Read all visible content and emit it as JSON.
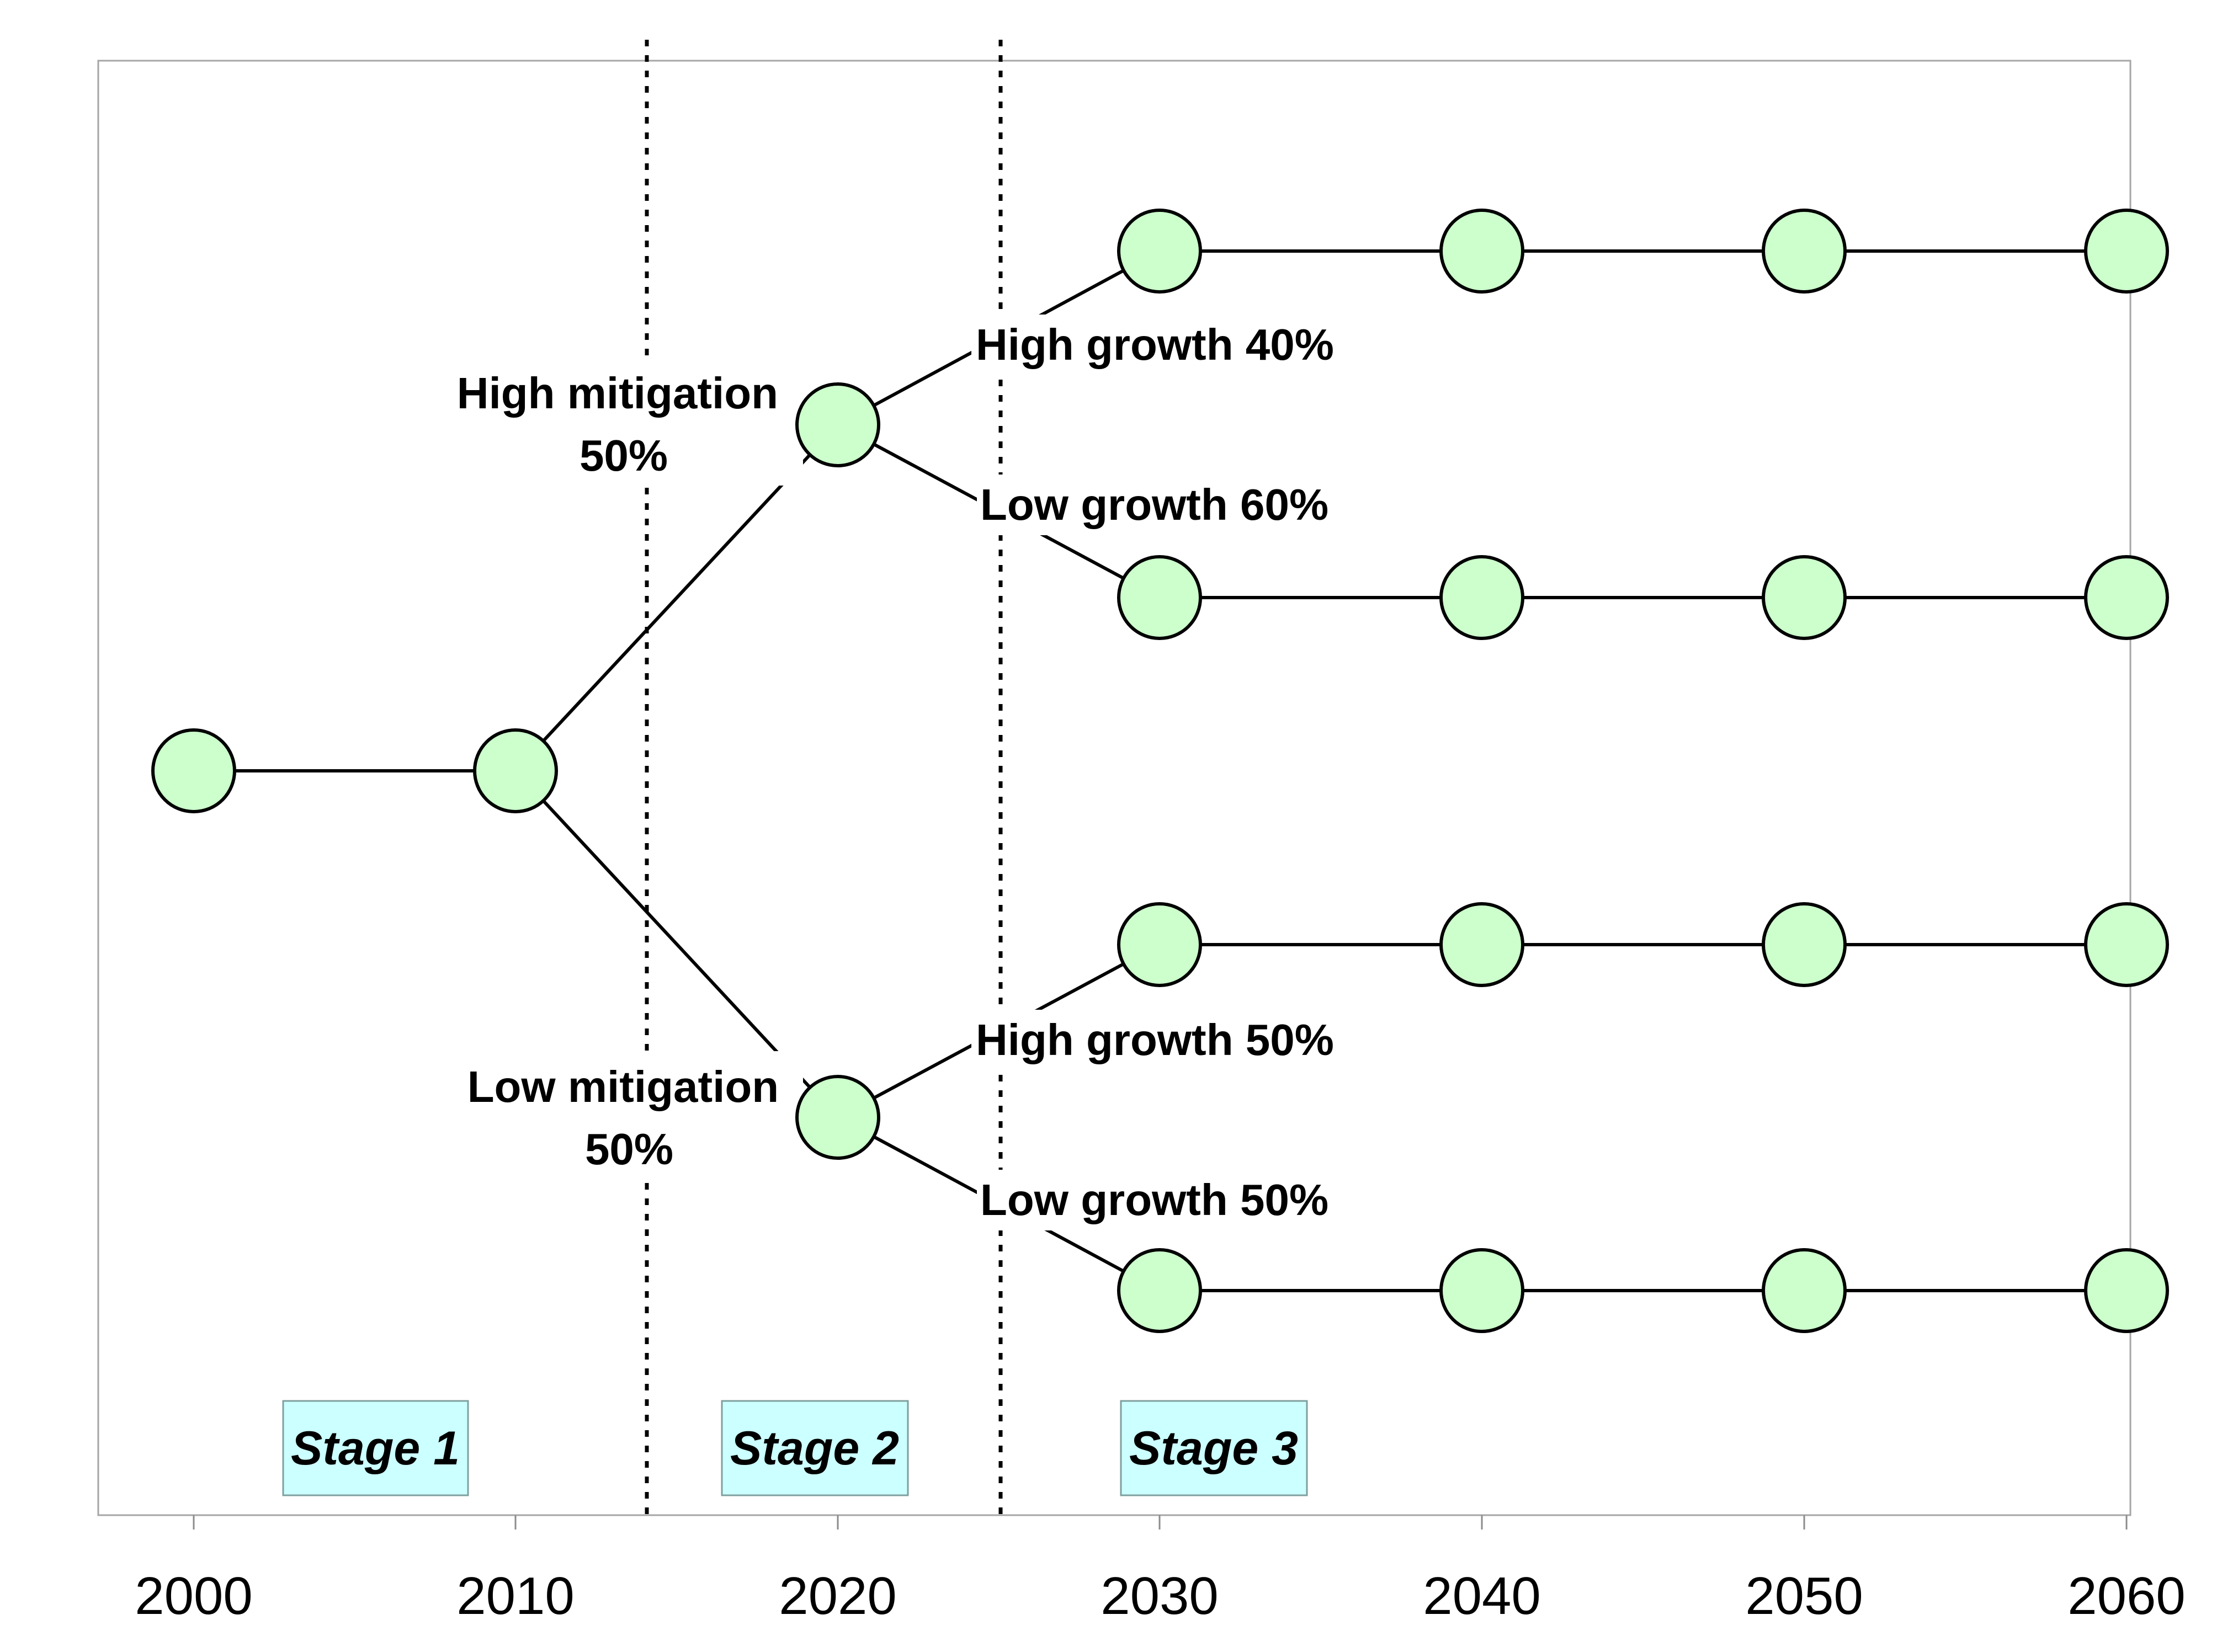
{
  "colors": {
    "node_fill": "#ccffcc",
    "stage_box_fill": "#ccffff",
    "line": "#000000"
  },
  "x_axis": {
    "ticks": [
      "2000",
      "2010",
      "2020",
      "2030",
      "2040",
      "2050",
      "2060"
    ]
  },
  "labels": {
    "high_mitigation": [
      "High mitigation",
      "50%"
    ],
    "low_mitigation": [
      "Low mitigation",
      "50%"
    ],
    "high_growth_40": "High growth 40%",
    "low_growth_60": "Low growth 60%",
    "high_growth_50": "High growth 50%",
    "low_growth_50": "Low growth 50%"
  },
  "stages": [
    "Stage 1",
    "Stage 2",
    "Stage 3"
  ]
}
